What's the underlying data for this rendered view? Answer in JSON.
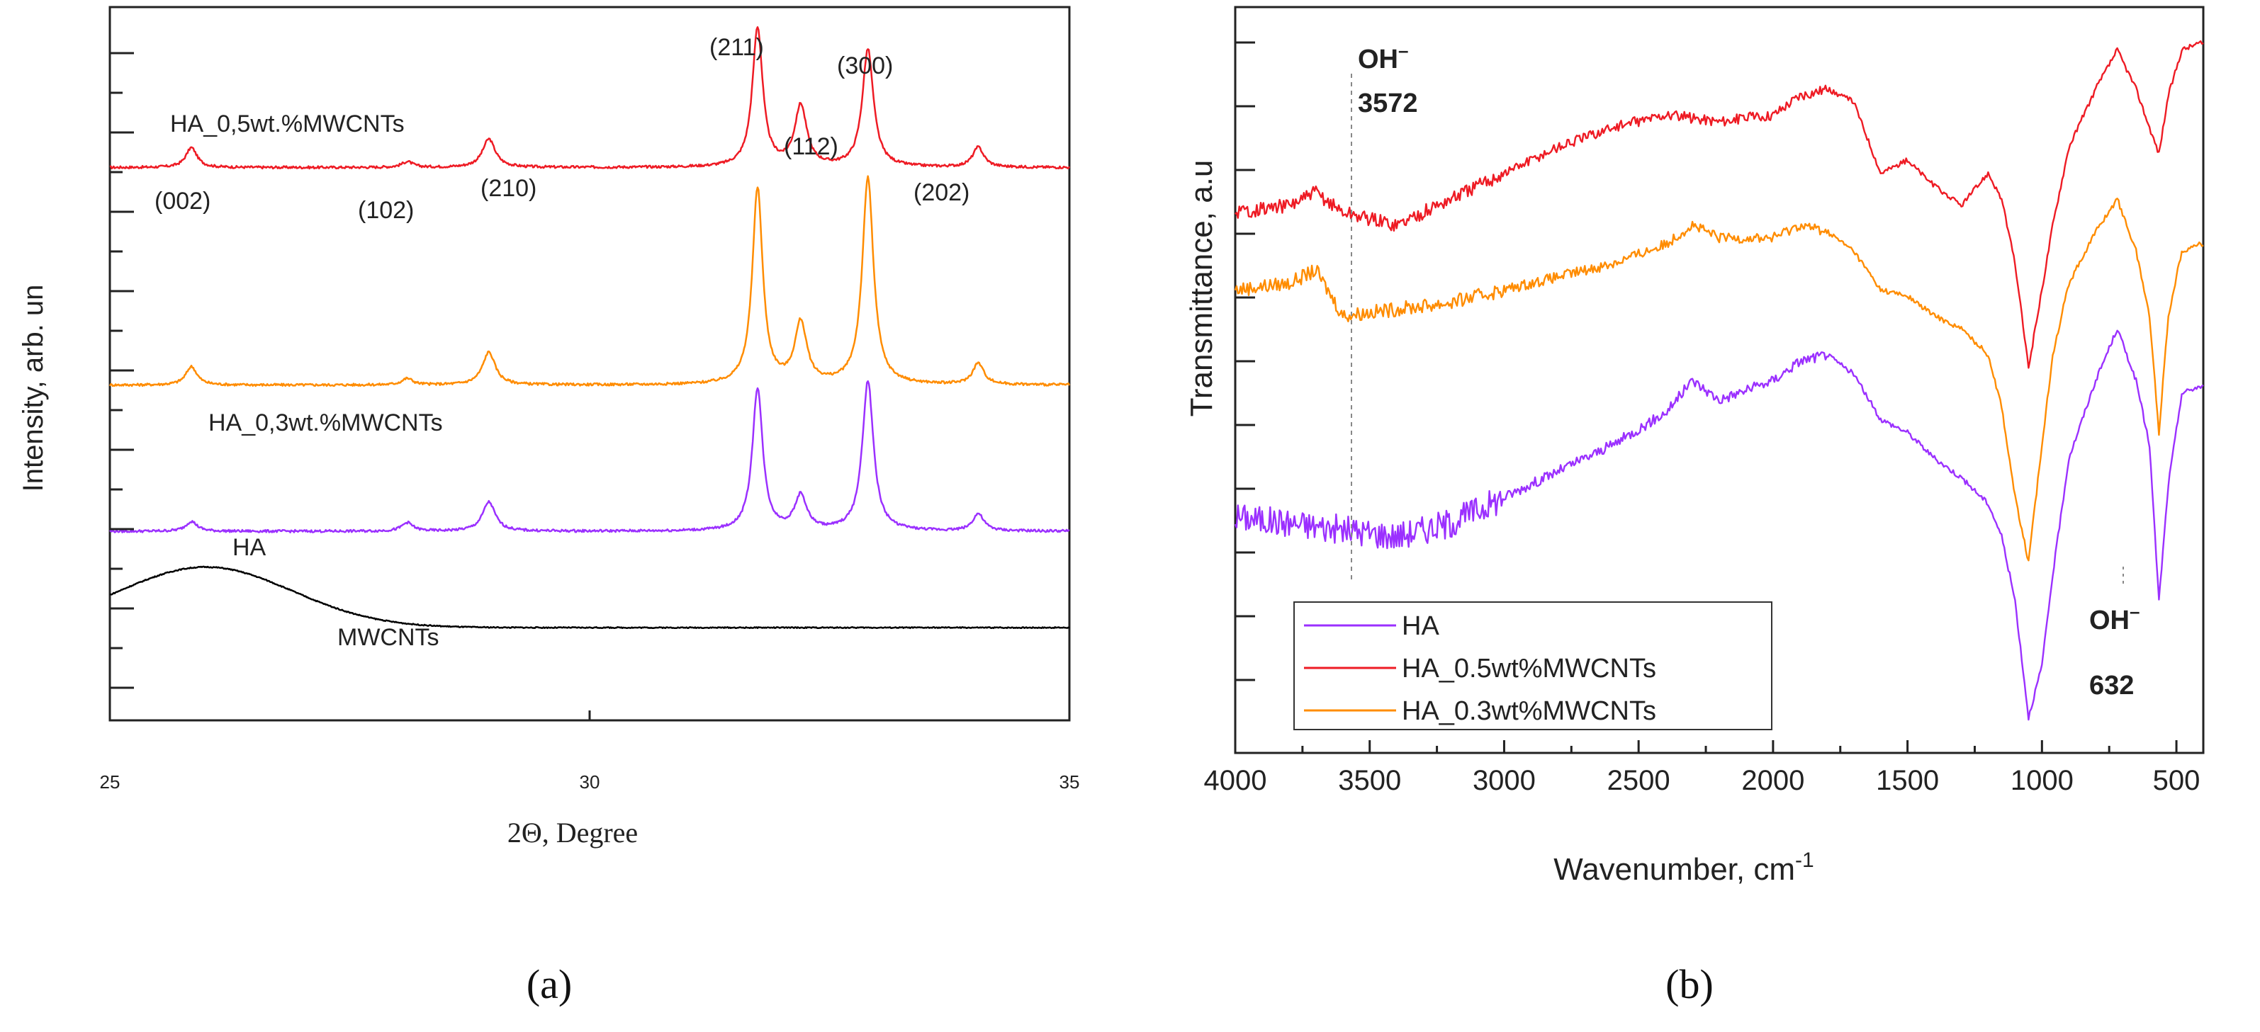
{
  "figure": {
    "label_a": "(a)",
    "label_b": "(b)"
  },
  "chart_data": [
    {
      "type": "line",
      "title": "",
      "xlabel": "2Θ, Degree",
      "ylabel": "Intensity, arb. un",
      "xlim": [
        25,
        35
      ],
      "ylim": [
        0,
        100
      ],
      "x_ticks": [
        25,
        30,
        35
      ],
      "x_tick_labels": [
        "25",
        "30",
        "35"
      ],
      "y_tick_labels": false,
      "peak_positions": [
        25.85,
        28.1,
        28.95,
        31.75,
        32.2,
        32.9,
        34.05
      ],
      "series": [
        {
          "name": "HA_0,5wt.%MWCNTs",
          "color": "#ee1b24",
          "baseline": 77.5,
          "peak_heights": [
            2.8,
            0.8,
            4.0,
            19.5,
            8.5,
            16.5,
            2.8
          ]
        },
        {
          "name": "HA_0,3wt.%MWCNTs",
          "color": "#ff8c00",
          "baseline": 47.0,
          "peak_heights": [
            2.6,
            0.9,
            4.6,
            27.5,
            8.5,
            29.0,
            3.0
          ]
        },
        {
          "name": "HA",
          "color": "#9b30ff",
          "baseline": 26.5,
          "peak_heights": [
            1.4,
            1.2,
            4.1,
            20.0,
            4.8,
            21.0,
            2.4
          ]
        },
        {
          "name": "MWCNTs",
          "color": "#000000",
          "baseline": 13.0,
          "broad_peak": {
            "center": 26.0,
            "height": 8.5,
            "width": 0.9
          }
        }
      ],
      "annotations": [
        "(002)",
        "(102)",
        "(210)",
        "(211)",
        "(112)",
        "(300)",
        "(202)"
      ]
    },
    {
      "type": "line",
      "title": "",
      "xlabel": "Wavenumber, cm",
      "xlabel_sup": "-1",
      "ylabel": "Transmittance, a.u",
      "xlim": [
        4000,
        400
      ],
      "x_ticks": [
        4000,
        3500,
        3000,
        2500,
        2000,
        1500,
        1000,
        500
      ],
      "x_tick_labels": [
        "4000",
        "3500",
        "3000",
        "2500",
        "2000",
        "1500",
        "1000",
        "500"
      ],
      "y_tick_labels": false,
      "legend_position": "bottom-left",
      "series": [
        {
          "name": "HA",
          "color": "#9b30ff",
          "x": [
            4000,
            3800,
            3600,
            3400,
            3200,
            3000,
            2800,
            2600,
            2400,
            2300,
            2200,
            2000,
            1900,
            1800,
            1700,
            1600,
            1500,
            1400,
            1300,
            1200,
            1150,
            1100,
            1050,
            1000,
            960,
            900,
            800,
            720,
            650,
            600,
            565,
            530,
            480,
            420
          ],
          "y": [
            31,
            30,
            29,
            28,
            30,
            34,
            38,
            42,
            47,
            52,
            49,
            52,
            55,
            56,
            53,
            46,
            44,
            40,
            37,
            33,
            28,
            18,
            0,
            8,
            22,
            40,
            52,
            60,
            52,
            42,
            18,
            36,
            50,
            51
          ]
        },
        {
          "name": "HA_0.5wt%MWCNTs",
          "color": "#ee1b24",
          "x": [
            4000,
            3800,
            3700,
            3600,
            3400,
            3200,
            3000,
            2800,
            2600,
            2400,
            2200,
            2000,
            1900,
            1800,
            1700,
            1600,
            1500,
            1400,
            1300,
            1200,
            1150,
            1100,
            1050,
            1000,
            960,
            900,
            800,
            720,
            650,
            600,
            565,
            530,
            480,
            420
          ],
          "y": [
            78,
            79,
            81,
            78,
            76,
            80,
            84,
            88,
            91,
            93,
            92,
            93,
            96,
            97,
            95,
            84,
            86,
            82,
            79,
            84,
            80,
            70,
            54,
            66,
            76,
            88,
            97,
            103,
            97,
            91,
            87,
            96,
            103,
            104
          ]
        },
        {
          "name": "HA_0.3wt%MWCNTs",
          "color": "#ff8c00",
          "x": [
            4000,
            3800,
            3700,
            3600,
            3400,
            3200,
            3000,
            2800,
            2600,
            2400,
            2300,
            2200,
            2000,
            1900,
            1800,
            1700,
            1600,
            1500,
            1400,
            1300,
            1200,
            1150,
            1100,
            1050,
            1000,
            960,
            900,
            800,
            720,
            650,
            600,
            565,
            530,
            480,
            420
          ],
          "y": [
            66,
            67,
            69,
            62,
            63,
            64,
            66,
            68,
            70,
            73,
            76,
            74,
            74,
            76,
            75,
            72,
            66,
            65,
            62,
            60,
            56,
            48,
            34,
            24,
            42,
            56,
            67,
            75,
            80,
            72,
            62,
            44,
            62,
            72,
            73
          ]
        }
      ],
      "annotations": [
        {
          "text": "OH",
          "sup": "–",
          "value": "3572",
          "at": 3572
        },
        {
          "text": "OH",
          "sup": "–",
          "value": "632",
          "at": 632
        }
      ]
    }
  ]
}
